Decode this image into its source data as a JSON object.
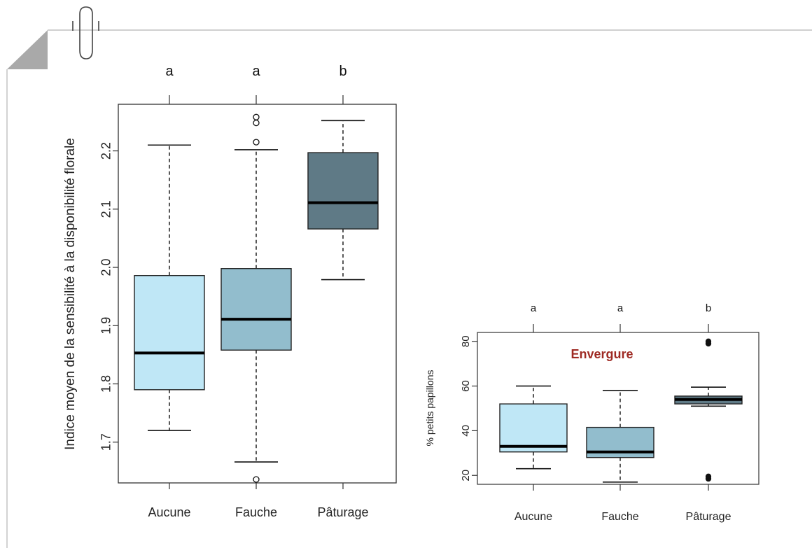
{
  "colors": {
    "aucune": "#bfe7f6",
    "fauche": "#92bdcd",
    "paturage": "#5f7a86",
    "median": "#000000",
    "axis": "#333333",
    "title_red": "#9e2a23",
    "page_edge": "#a9a9a9"
  },
  "icons": {
    "clip": "paperclip-icon",
    "fold": "page-fold-icon"
  },
  "chart_data": [
    {
      "type": "boxplot",
      "title": "",
      "xlabel": "",
      "ylabel": "Indice moyen de la sensibilité à la disponibilité florale",
      "ylim": [
        1.63,
        2.28
      ],
      "yticks": [
        "1.7",
        "1.8",
        "1.9",
        "2.0",
        "2.1",
        "2.2"
      ],
      "ytick_values": [
        1.7,
        1.8,
        1.9,
        2.0,
        2.1,
        2.2
      ],
      "grid": false,
      "categories": [
        "Aucune",
        "Fauche",
        "Pâturage"
      ],
      "group_letters": [
        "a",
        "a",
        "b"
      ],
      "boxes": [
        {
          "whisker_low": 1.72,
          "q1": 1.79,
          "median": 1.853,
          "q3": 1.986,
          "whisker_high": 2.21,
          "outliers": []
        },
        {
          "whisker_low": 1.666,
          "q1": 1.858,
          "median": 1.911,
          "q3": 1.998,
          "whisker_high": 2.202,
          "outliers": [
            1.636,
            2.215,
            2.248,
            2.258
          ]
        },
        {
          "whisker_low": 1.979,
          "q1": 2.066,
          "median": 2.111,
          "q3": 2.197,
          "whisker_high": 2.252,
          "outliers": []
        }
      ]
    },
    {
      "type": "boxplot",
      "title": "Envergure",
      "xlabel": "",
      "ylabel": "% petits papillons",
      "ylim": [
        16,
        84
      ],
      "yticks": [
        "20",
        "40",
        "60",
        "80"
      ],
      "ytick_values": [
        20,
        40,
        60,
        80
      ],
      "grid": false,
      "categories": [
        "Aucune",
        "Fauche",
        "Pâturage"
      ],
      "group_letters": [
        "a",
        "a",
        "b"
      ],
      "boxes": [
        {
          "whisker_low": 23,
          "q1": 30.5,
          "median": 33,
          "q3": 52,
          "whisker_high": 60,
          "outliers": []
        },
        {
          "whisker_low": 17,
          "q1": 28,
          "median": 30.5,
          "q3": 41.5,
          "whisker_high": 58,
          "outliers": []
        },
        {
          "whisker_low": 51,
          "q1": 52,
          "median": 54,
          "q3": 55.5,
          "whisker_high": 59.5,
          "outliers": [
            18.5,
            19.5,
            79,
            80
          ]
        }
      ]
    }
  ]
}
